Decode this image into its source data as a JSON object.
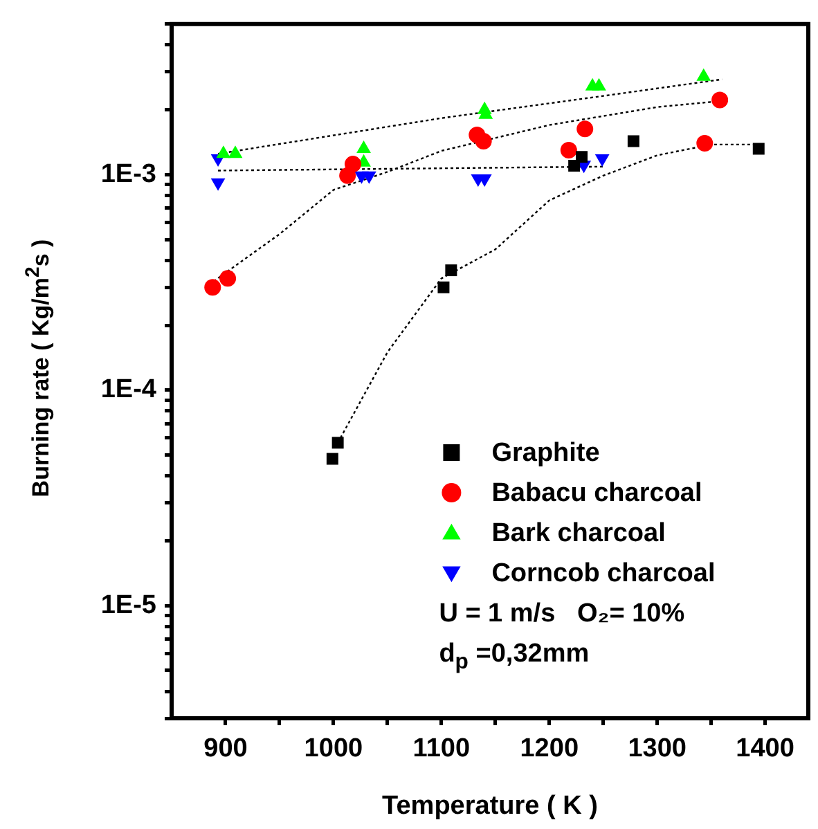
{
  "chart_data": {
    "type": "scatter",
    "xlabel": "Temperature ( K )",
    "ylabel": "Burning rate ( Kg/m$^{2}$s )",
    "xlim": [
      850,
      1440
    ],
    "ylim": [
      3e-06,
      0.005
    ],
    "log": "y",
    "grid": false,
    "legend": "bottom right",
    "xticks": [
      900,
      {
        "value": 950,
        "label": null
      },
      1000,
      {
        "value": 1050,
        "label": null
      },
      1100,
      {
        "value": 1150,
        "label": null
      },
      1200,
      {
        "value": 1250,
        "label": null
      },
      1300,
      {
        "value": 1350,
        "label": null
      },
      1400
    ],
    "yticks": [
      {
        "value": 3e-06,
        "label": null
      },
      {
        "value": 4e-06,
        "label": null
      },
      {
        "value": 5e-06,
        "label": null
      },
      {
        "value": 6e-06,
        "label": null
      },
      {
        "value": 7e-06,
        "label": null
      },
      {
        "value": 8e-06,
        "label": null
      },
      {
        "value": 9e-06,
        "label": null
      },
      {
        "value": 1e-05,
        "label": "1E-5"
      },
      {
        "value": 2e-05,
        "label": null
      },
      {
        "value": 3e-05,
        "label": null
      },
      {
        "value": 4e-05,
        "label": null
      },
      {
        "value": 5e-05,
        "label": null
      },
      {
        "value": 6e-05,
        "label": null
      },
      {
        "value": 7e-05,
        "label": null
      },
      {
        "value": 8e-05,
        "label": null
      },
      {
        "value": 9e-05,
        "label": null
      },
      {
        "value": 0.0001,
        "label": "1E-4"
      },
      {
        "value": 0.0002,
        "label": null
      },
      {
        "value": 0.0003,
        "label": null
      },
      {
        "value": 0.0004,
        "label": null
      },
      {
        "value": 0.0005,
        "label": null
      },
      {
        "value": 0.0006,
        "label": null
      },
      {
        "value": 0.0007,
        "label": null
      },
      {
        "value": 0.0008,
        "label": null
      },
      {
        "value": 0.0009,
        "label": null
      },
      {
        "value": 0.001,
        "label": "1E-3"
      },
      {
        "value": 0.002,
        "label": null
      },
      {
        "value": 0.003,
        "label": null
      },
      {
        "value": 0.004,
        "label": null
      },
      {
        "value": 0.005,
        "label": null
      }
    ],
    "annotations": [
      "U = 1 m/s   O₂= 10%",
      "d$_{p}$ =0,32mm"
    ],
    "series": [
      {
        "name": "Graphite",
        "color": "#000000",
        "marker": "square",
        "x": [
          999,
          1004,
          1102,
          1109,
          1223,
          1230,
          1278,
          1394
        ],
        "values": [
          4.8e-05,
          5.7e-05,
          0.0003,
          0.00036,
          0.0011,
          0.00121,
          0.00143,
          0.00132
        ]
      },
      {
        "name": "Babacu charcoal",
        "color": "#ff0000",
        "marker": "circle",
        "x": [
          888,
          902,
          1013,
          1018,
          1133,
          1139,
          1218,
          1233,
          1344,
          1358
        ],
        "values": [
          0.0003,
          0.00033,
          0.00099,
          0.00112,
          0.00153,
          0.00143,
          0.0013,
          0.00163,
          0.0014,
          0.00222
        ]
      },
      {
        "name": "Bark charcoal",
        "color": "#00ff00",
        "marker": "triangle",
        "x": [
          898,
          909,
          1028,
          1028,
          1140,
          1141,
          1240,
          1246,
          1343
        ],
        "values": [
          0.00125,
          0.00125,
          0.00132,
          0.00114,
          0.002,
          0.0019,
          0.00257,
          0.00257,
          0.00285
        ]
      },
      {
        "name": "Corncob charcoal",
        "color": "#0000ff",
        "marker": "triangle-down",
        "x": [
          893,
          893,
          1026,
          1033,
          1134,
          1140,
          1232,
          1249
        ],
        "values": [
          0.00119,
          0.00092,
          0.00099,
          0.00099,
          0.00096,
          0.00096,
          0.00111,
          0.00119
        ]
      },
      {
        "type": "line",
        "color": "#000000",
        "marker": "none",
        "line_style": "dotted",
        "x": [
          1004,
          1050,
          1100,
          1150,
          1200,
          1250,
          1300,
          1350,
          1394
        ],
        "values": [
          5.7e-05,
          0.00015,
          0.00033,
          0.00045,
          0.00076,
          0.00099,
          0.00123,
          0.00138,
          0.00138
        ]
      },
      {
        "type": "line",
        "color": "#000000",
        "marker": "none",
        "line_style": "dotted",
        "x": [
          889,
          950,
          1000,
          1050,
          1100,
          1200,
          1300,
          1360
        ],
        "values": [
          0.00032,
          0.00053,
          0.00085,
          0.00103,
          0.00129,
          0.0017,
          0.00206,
          0.0022
        ]
      },
      {
        "type": "line",
        "color": "#000000",
        "marker": "none",
        "line_style": "dotted",
        "x": [
          893,
          1100,
          1250,
          1360
        ],
        "values": [
          0.00125,
          0.00183,
          0.00232,
          0.00277
        ]
      },
      {
        "type": "line",
        "color": "#000000",
        "marker": "none",
        "line_style": "dotted",
        "x": [
          893,
          1250
        ],
        "values": [
          0.001045,
          0.00109
        ]
      }
    ]
  }
}
